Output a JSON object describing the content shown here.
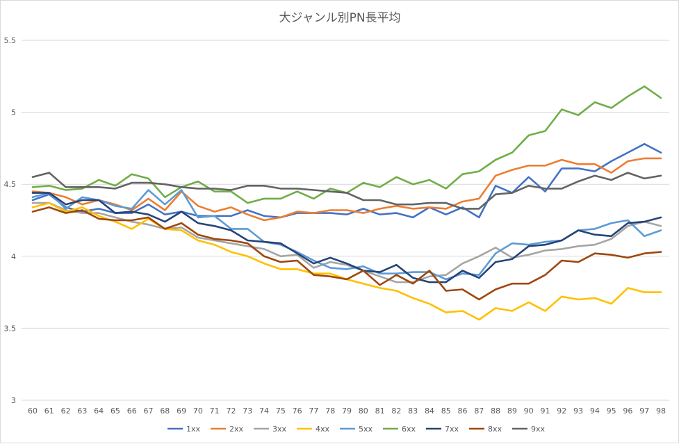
{
  "chart_data": {
    "type": "line",
    "title": "大ジャンル別PN長平均",
    "xlabel": "",
    "ylabel": "",
    "ylim": [
      3,
      5.5
    ],
    "yticks": [
      "3",
      "3.5",
      "4",
      "4.5",
      "5",
      "5.5"
    ],
    "grid": true,
    "legend_position": "bottom",
    "x": [
      "60",
      "61",
      "62",
      "63",
      "64",
      "65",
      "66",
      "67",
      "68",
      "69",
      "70",
      "71",
      "72",
      "73",
      "74",
      "75",
      "76",
      "77",
      "78",
      "79",
      "80",
      "81",
      "82",
      "83",
      "84",
      "85",
      "86",
      "87",
      "88",
      "89",
      "90",
      "91",
      "92",
      "93",
      "94",
      "95",
      "96",
      "97",
      "98"
    ],
    "series": [
      {
        "name": "1xx",
        "color": "#4472c4",
        "values": [
          4.39,
          4.43,
          4.34,
          4.31,
          4.33,
          4.3,
          4.3,
          4.36,
          4.29,
          4.31,
          4.28,
          4.28,
          4.28,
          4.32,
          4.28,
          4.27,
          4.3,
          4.3,
          4.3,
          4.29,
          4.33,
          4.29,
          4.3,
          4.27,
          4.34,
          4.29,
          4.34,
          4.27,
          4.49,
          4.44,
          4.55,
          4.45,
          4.61,
          4.61,
          4.59,
          4.66,
          4.72,
          4.78,
          4.72
        ]
      },
      {
        "name": "2xx",
        "color": "#ed7d31",
        "values": [
          4.45,
          4.44,
          4.41,
          4.36,
          4.39,
          4.36,
          4.32,
          4.4,
          4.32,
          4.45,
          4.35,
          4.31,
          4.34,
          4.29,
          4.25,
          4.27,
          4.31,
          4.3,
          4.32,
          4.32,
          4.3,
          4.33,
          4.35,
          4.33,
          4.34,
          4.33,
          4.38,
          4.4,
          4.56,
          4.6,
          4.63,
          4.63,
          4.67,
          4.64,
          4.64,
          4.58,
          4.66,
          4.68,
          4.68
        ]
      },
      {
        "name": "3xx",
        "color": "#a5a5a5",
        "values": [
          4.37,
          4.37,
          4.32,
          4.3,
          4.3,
          4.27,
          4.24,
          4.22,
          4.19,
          4.2,
          4.13,
          4.11,
          4.09,
          4.07,
          4.05,
          4.0,
          4.01,
          3.92,
          3.96,
          3.94,
          3.9,
          3.86,
          3.82,
          3.82,
          3.86,
          3.87,
          3.95,
          4.0,
          4.06,
          3.99,
          4.01,
          4.04,
          4.05,
          4.07,
          4.08,
          4.12,
          4.21,
          4.24,
          4.21
        ]
      },
      {
        "name": "4xx",
        "color": "#ffc000",
        "values": [
          4.34,
          4.37,
          4.31,
          4.34,
          4.28,
          4.24,
          4.19,
          4.26,
          4.19,
          4.18,
          4.11,
          4.08,
          4.03,
          4.0,
          3.95,
          3.91,
          3.91,
          3.88,
          3.88,
          3.84,
          3.81,
          3.78,
          3.76,
          3.71,
          3.67,
          3.61,
          3.62,
          3.56,
          3.64,
          3.62,
          3.68,
          3.62,
          3.72,
          3.7,
          3.71,
          3.67,
          3.78,
          3.75,
          3.75
        ]
      },
      {
        "name": "5xx",
        "color": "#5b9bd5",
        "values": [
          4.41,
          4.44,
          4.33,
          4.41,
          4.39,
          4.35,
          4.33,
          4.46,
          4.36,
          4.46,
          4.27,
          4.28,
          4.19,
          4.19,
          4.1,
          4.08,
          4.03,
          3.97,
          3.92,
          3.91,
          3.93,
          3.88,
          3.88,
          3.89,
          3.89,
          3.84,
          3.88,
          3.87,
          4.02,
          4.09,
          4.08,
          4.1,
          4.11,
          4.18,
          4.19,
          4.23,
          4.25,
          4.14,
          4.18
        ]
      },
      {
        "name": "6xx",
        "color": "#70ad47",
        "values": [
          4.48,
          4.49,
          4.46,
          4.47,
          4.53,
          4.49,
          4.57,
          4.54,
          4.41,
          4.48,
          4.52,
          4.45,
          4.45,
          4.37,
          4.4,
          4.4,
          4.45,
          4.4,
          4.47,
          4.44,
          4.51,
          4.48,
          4.55,
          4.5,
          4.53,
          4.47,
          4.57,
          4.59,
          4.67,
          4.72,
          4.84,
          4.87,
          5.02,
          4.98,
          5.07,
          5.03,
          5.11,
          5.18,
          5.1
        ]
      },
      {
        "name": "7xx",
        "color": "#264478",
        "values": [
          4.44,
          4.44,
          4.36,
          4.39,
          4.39,
          4.3,
          4.31,
          4.29,
          4.24,
          4.31,
          4.23,
          4.21,
          4.18,
          4.11,
          4.1,
          4.09,
          4.02,
          3.95,
          3.99,
          3.95,
          3.9,
          3.89,
          3.94,
          3.85,
          3.82,
          3.82,
          3.9,
          3.85,
          3.96,
          3.98,
          4.07,
          4.08,
          4.11,
          4.18,
          4.15,
          4.14,
          4.23,
          4.24,
          4.27
        ]
      },
      {
        "name": "8xx",
        "color": "#9e480e",
        "values": [
          4.31,
          4.34,
          4.3,
          4.32,
          4.26,
          4.25,
          4.25,
          4.27,
          4.19,
          4.23,
          4.15,
          4.12,
          4.11,
          4.09,
          4.0,
          3.96,
          3.97,
          3.87,
          3.86,
          3.84,
          3.9,
          3.8,
          3.87,
          3.81,
          3.9,
          3.76,
          3.77,
          3.7,
          3.77,
          3.81,
          3.81,
          3.87,
          3.97,
          3.96,
          4.02,
          4.01,
          3.99,
          4.02,
          4.03
        ]
      },
      {
        "name": "9xx",
        "color": "#636363",
        "values": [
          4.55,
          4.58,
          4.48,
          4.48,
          4.48,
          4.47,
          4.51,
          4.51,
          4.5,
          4.48,
          4.47,
          4.47,
          4.46,
          4.49,
          4.49,
          4.47,
          4.47,
          4.46,
          4.45,
          4.44,
          4.39,
          4.39,
          4.36,
          4.36,
          4.37,
          4.37,
          4.33,
          4.33,
          4.43,
          4.44,
          4.49,
          4.47,
          4.47,
          4.52,
          4.56,
          4.53,
          4.58,
          4.54,
          4.56
        ]
      }
    ]
  }
}
